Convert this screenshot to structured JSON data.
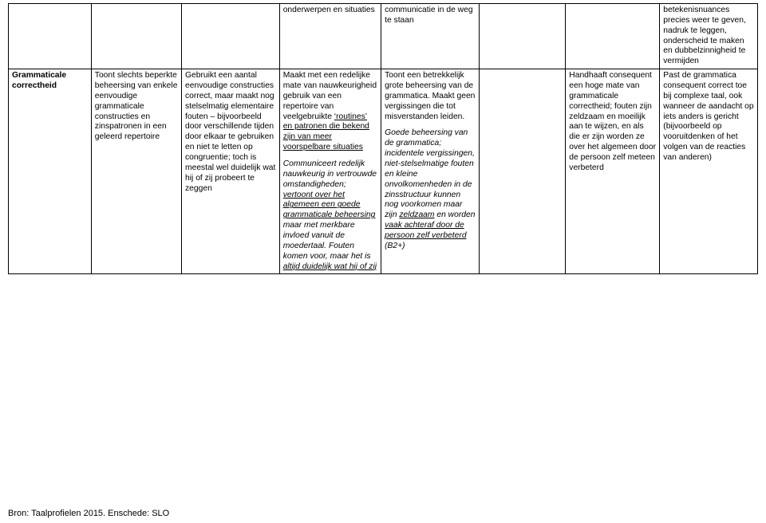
{
  "table": {
    "row0": {
      "c3": "onderwerpen en situaties",
      "c4": "communicatie in de weg te staan",
      "c7": "betekenisnuances precies weer te geven, nadruk te leggen, onderscheid te maken en dubbelzinnigheid te vermijden"
    },
    "row1": {
      "c0": "Grammaticale correctheid",
      "c1": "Toont slechts beperkte beheersing van enkele eenvoudige grammaticale constructies en zinspatronen in een geleerd repertoire",
      "c2": "Gebruikt een aantal eenvoudige constructies correct, maar maakt nog stelselmatig elementaire fouten – bijvoorbeeld door verschillende tijden door elkaar te gebruiken en niet te letten op congruentie; toch is meestal wel duidelijk wat hij of zij probeert te zeggen",
      "c3_p1a": "Maakt met een redelijke mate van nauwkeurigheid gebruik van een repertoire van veelgebruikte ",
      "c3_p1b": "‘routines’ en patronen die bekend zijn van meer voorspelbare situaties",
      "c3_p2a": "Communiceert redelijk nauwkeurig in vertrouwde omstandigheden; ",
      "c3_p2b": "vertoont over het algemeen een goede grammaticale beheersing",
      "c3_p2c": " maar met merkbare invloed vanuit de moedertaal. Fouten komen voor, maar het is ",
      "c3_p2d": "altijd duidelijk wat hij of zij",
      "c4_p1": "Toont een betrekkelijk grote beheersing van de grammatica. Maakt geen vergissingen die tot misverstanden leiden.",
      "c4_p2a": "Goede beheersing van de grammatica; incidentele vergissingen, niet-stelselmatige fouten en kleine onvolkomenheden in de zinsstructuur kunnen nog voorkomen maar zijn ",
      "c4_p2b": "zeldzaam",
      "c4_p2c": " en worden ",
      "c4_p2d": "vaak achteraf door de persoon zelf verbeterd",
      "c4_p2e": " (B2+)",
      "c5_p1a": "Toont slechts beperkte beheersing van enkele eenvoudige ",
      "c5_p1b": "grammaticale constructies en zinspatronen in een geleerd repertoire",
      "c6_p1a": "Handhaaft consequent een hoge mate van grammaticale correctheid; fouten zijn zeldzaam en moeilijk aan te wijzen, en als die er zijn worden ze over het algemeen door de persoon zelf meteen verbeterd",
      "c7": "Past de grammatica consequent correct toe bij complexe taal, ook wanneer de aandacht op iets anders is gericht (bijvoorbeeld op vooruitdenken of het volgen van de reacties van anderen)"
    }
  },
  "source": "Bron: Taalprofielen 2015. Enschede: SLO"
}
